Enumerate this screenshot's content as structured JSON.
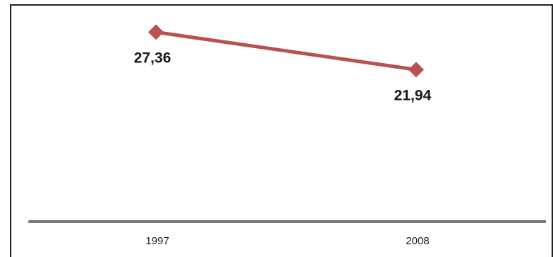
{
  "chart_data": {
    "type": "line",
    "categories": [
      "1997",
      "2008"
    ],
    "series": [
      {
        "values": [
          27.36,
          21.94
        ],
        "labels": [
          "27,36",
          "21,94"
        ],
        "color": "#b9524f",
        "marker": "diamond"
      }
    ],
    "title": "",
    "xlabel": "",
    "ylabel": "",
    "ylim": [
      0,
      32
    ],
    "grid": false,
    "legend": "none",
    "axis_color": "#7a7a7a"
  }
}
